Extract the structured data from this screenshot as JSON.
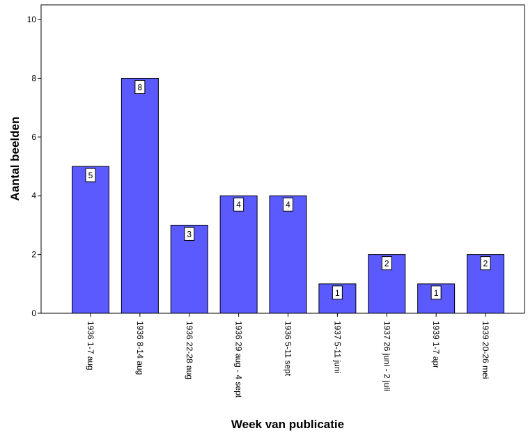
{
  "chart_data": {
    "type": "bar",
    "title": "",
    "xlabel": "Week van publicatie",
    "ylabel": "Aantal beelden",
    "categories": [
      "1936 1-7 aug",
      "1936 8-14 aug",
      "1936 22-28 aug",
      "1936 29 aug - 4 sept",
      "1936 5-11 sept",
      "1937 5-11 juni",
      "1937 26 juni - 2 juli",
      "1939 1-7 apr",
      "1939 20-26 mei"
    ],
    "values": [
      5,
      8,
      3,
      4,
      4,
      1,
      2,
      1,
      2
    ],
    "ylim": [
      0,
      10.5
    ],
    "yticks": [
      "0",
      "2",
      "4",
      "6",
      "8",
      "10"
    ],
    "bar_color": "#5a5aff",
    "grid": false,
    "legend": "none"
  }
}
